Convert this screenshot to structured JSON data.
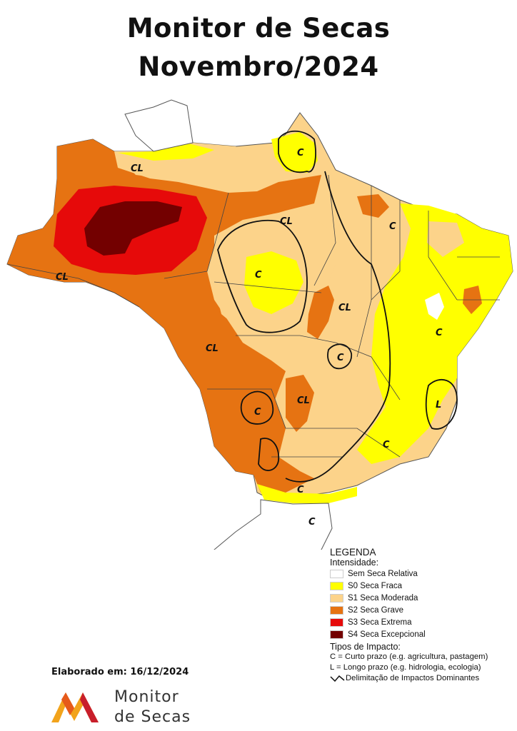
{
  "title_line1": "Monitor de Secas",
  "title_line2": "Novembro/2024",
  "map_labels": [
    {
      "id": "cl-roraima-north",
      "text": "CL"
    },
    {
      "id": "c-amapa",
      "text": "C"
    },
    {
      "id": "cl-amazonas-west",
      "text": "CL"
    },
    {
      "id": "cl-para",
      "text": "CL"
    },
    {
      "id": "c-para-center",
      "text": "C"
    },
    {
      "id": "c-maranhao",
      "text": "C"
    },
    {
      "id": "cl-tocantins",
      "text": "CL"
    },
    {
      "id": "c-bahia-east",
      "text": "C"
    },
    {
      "id": "cl-mato-grosso",
      "text": "CL"
    },
    {
      "id": "c-goias",
      "text": "C"
    },
    {
      "id": "cl-minas",
      "text": "CL"
    },
    {
      "id": "c-mato-grosso-sul",
      "text": "C"
    },
    {
      "id": "l-espirito-santo",
      "text": "L"
    },
    {
      "id": "c-minas-south",
      "text": "C"
    },
    {
      "id": "c-parana",
      "text": "C"
    },
    {
      "id": "c-santa-catarina",
      "text": "C"
    }
  ],
  "legend": {
    "heading": "LEGENDA",
    "intensity_heading": "Intensidade:",
    "items": [
      {
        "label": "Sem Seca Relativa",
        "color": "#ffffff"
      },
      {
        "label": "S0 Seca Fraca",
        "color": "#ffff00"
      },
      {
        "label": "S1 Seca Moderada",
        "color": "#fcd38a"
      },
      {
        "label": "S2 Seca Grave",
        "color": "#e67312"
      },
      {
        "label": "S3 Seca Extrema",
        "color": "#e60a0a"
      },
      {
        "label": "S4 Seca Excepcional",
        "color": "#730000"
      }
    ],
    "impact_heading": "Tipos de Impacto:",
    "impact_c": "C = Curto prazo (e.g. agricultura, pastagem)",
    "impact_l": "L = Longo prazo (e.g. hidrologia, ecologia)",
    "delimitation": "Delimitação de Impactos Dominantes"
  },
  "elaborated": "Elaborado em: 16/12/2024",
  "logo_line1": "Monitor",
  "logo_line2": "de Secas",
  "colors": {
    "none": "#ffffff",
    "s0": "#ffff00",
    "s1": "#fcd38a",
    "s2": "#e67312",
    "s3": "#e60a0a",
    "s4": "#730000"
  }
}
